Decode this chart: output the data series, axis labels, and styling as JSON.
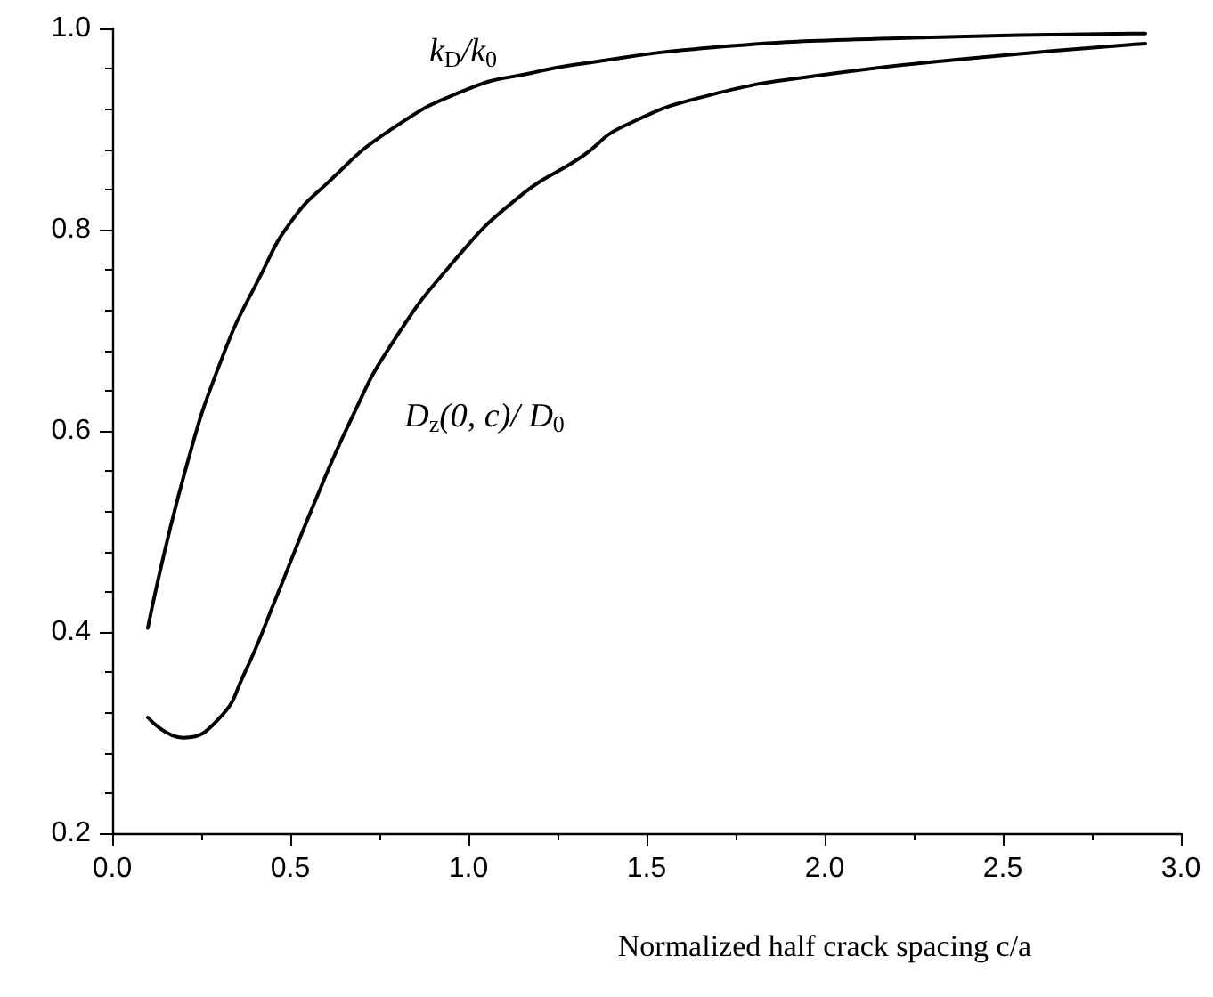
{
  "chart_data": {
    "type": "line",
    "xlabel": "Normalized half crack spacing c/a",
    "xlim": [
      0,
      3
    ],
    "xticks": [
      {
        "value": 0,
        "label": "0.0"
      },
      0.5,
      {
        "value": 1,
        "label": "1.0"
      },
      1.5,
      {
        "value": 2,
        "label": "2.0"
      },
      2.5,
      {
        "value": 3,
        "label": "3.0"
      }
    ],
    "ylim": [
      0.2,
      1.0
    ],
    "yticks": [
      0.2,
      0.4,
      0.6,
      0.8,
      {
        "value": 1,
        "label": "1.0"
      }
    ],
    "grid": false,
    "marker": "none",
    "line_style": "solid",
    "series": [
      {
        "color": "#000000",
        "x": [
          0.1,
          0.2,
          0.31,
          0.42,
          0.5,
          0.6,
          0.78,
          1.0,
          1.18,
          1.32,
          1.68,
          2.18,
          2.9
        ],
        "values": [
          0.404,
          0.554,
          0.674,
          0.757,
          0.807,
          0.845,
          0.899,
          0.94,
          0.956,
          0.965,
          0.981,
          0.99,
          0.995
        ]
      },
      {
        "color": "#000000",
        "x": [
          0.1,
          0.2,
          0.3,
          0.37,
          0.46,
          0.56,
          0.67,
          0.78,
          0.96,
          1.14,
          1.32,
          1.43,
          1.68,
          2.02,
          2.43,
          2.9
        ],
        "values": [
          0.315,
          0.295,
          0.314,
          0.358,
          0.434,
          0.522,
          0.611,
          0.684,
          0.769,
          0.832,
          0.873,
          0.902,
          0.934,
          0.955,
          0.971,
          0.985
        ]
      }
    ],
    "annotations": [
      "k$_{D}$/k$_{0}$",
      "D$_{z}$(0, c)/ D$_{0}$"
    ]
  }
}
